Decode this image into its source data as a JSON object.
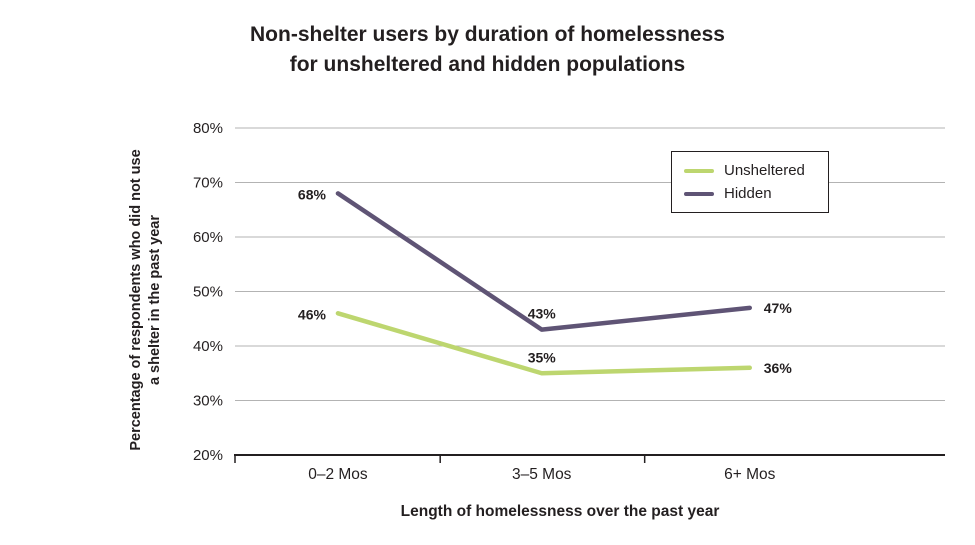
{
  "display": {
    "title_line1": "Non-shelter users by duration of homelessness",
    "title_line2": "for unsheltered and hidden populations",
    "ylabel_line1": "Percentage of respondents who did not use",
    "ylabel_line2": "a shelter in the past year"
  },
  "chart_data": {
    "type": "line",
    "title": "Non-shelter users by duration of homelessness for unsheltered and hidden populations",
    "xlabel": "Length of homelessness over the past year",
    "ylabel": "Percentage of respondents who did not use a shelter in the past year",
    "categories": [
      "0–2 Mos",
      "3–5 Mos",
      "6+ Mos"
    ],
    "series": [
      {
        "name": "Unsheltered",
        "values": [
          46,
          35,
          36
        ],
        "color": "#bdd66f"
      },
      {
        "name": "Hidden",
        "values": [
          68,
          43,
          47
        ],
        "color": "#5f5475"
      }
    ],
    "ylim": [
      20,
      80
    ],
    "ytick_step": 10,
    "ytick_suffix": "%",
    "data_label_suffix": "%",
    "grid": true,
    "grid_color": "#b3b3b3",
    "axis_color": "#231f20",
    "text_color": "#231f20",
    "legend_position": "top-right"
  }
}
